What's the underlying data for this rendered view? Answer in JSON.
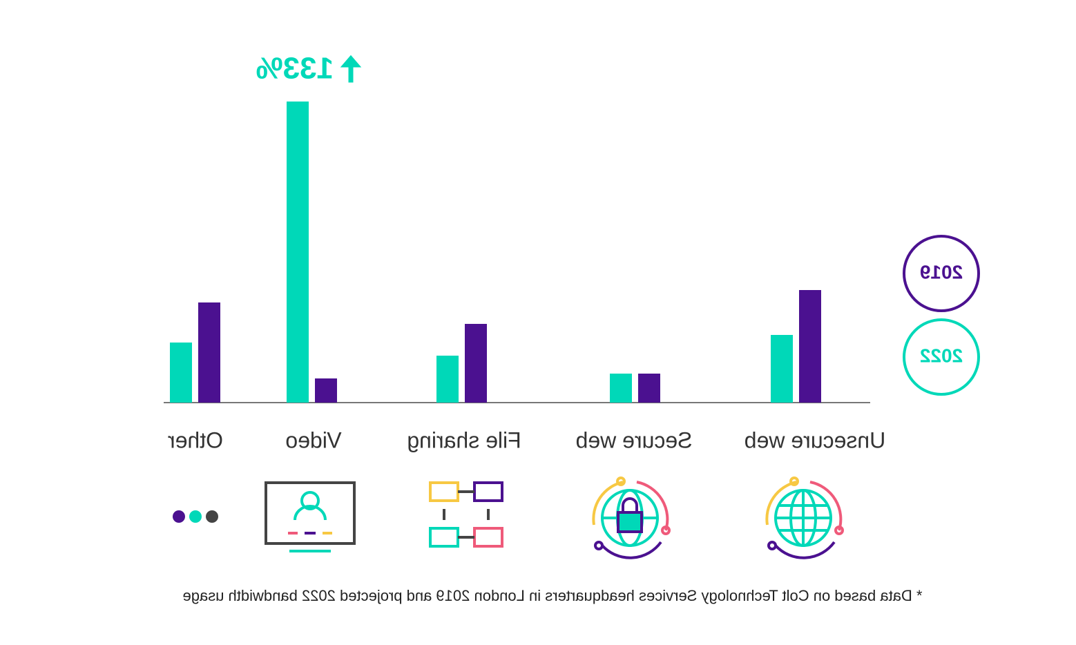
{
  "chart_data": {
    "type": "bar",
    "categories": [
      "Unsecure web",
      "Secure web",
      "File sharing",
      "Video",
      "Other"
    ],
    "series": [
      {
        "name": "2019",
        "color": "#4b1190",
        "values": [
          163,
          42,
          114,
          35,
          145
        ]
      },
      {
        "name": "2022",
        "color": "#00d8b8",
        "values": [
          98,
          42,
          68,
          436,
          87
        ]
      }
    ],
    "annotation": "133%",
    "footnote": "* Data based on Colt Technology Services headquarters in London 2019 and projected 2022 bandwidth usage"
  }
}
